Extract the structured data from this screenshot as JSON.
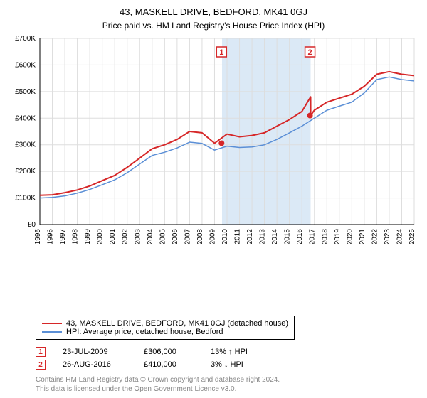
{
  "title": "43, MASKELL DRIVE, BEDFORD, MK41 0GJ",
  "subtitle": "Price paid vs. HM Land Registry's House Price Index (HPI)",
  "chart": {
    "type": "line",
    "x_years": [
      1995,
      1996,
      1997,
      1998,
      1999,
      2000,
      2001,
      2002,
      2003,
      2004,
      2005,
      2006,
      2007,
      2008,
      2009,
      2010,
      2011,
      2012,
      2013,
      2014,
      2015,
      2016,
      2017,
      2018,
      2019,
      2020,
      2021,
      2022,
      2023,
      2024,
      2025
    ],
    "ylim": [
      0,
      700000
    ],
    "ytick_step": 100000,
    "ytick_labels": [
      "£0",
      "£100K",
      "£200K",
      "£300K",
      "£400K",
      "£500K",
      "£600K",
      "£700K"
    ],
    "xlabel_fontsize": 10,
    "ylabel_fontsize": 10,
    "grid_color": "#dddddd",
    "background_color": "#ffffff",
    "highlight_band_color": "#dbe9f6",
    "highlight_band": [
      2009.6,
      2016.7
    ],
    "series": [
      {
        "name": "43, MASKELL DRIVE, BEDFORD, MK41 0GJ (detached house)",
        "color": "#d62728",
        "line_width": 2,
        "values_by_year": {
          "1995": 110,
          "1996": 112,
          "1997": 120,
          "1998": 130,
          "1999": 145,
          "2000": 165,
          "2001": 185,
          "2002": 215,
          "2003": 250,
          "2004": 285,
          "2005": 300,
          "2006": 320,
          "2007": 350,
          "2008": 345,
          "2009": 306,
          "2010": 340,
          "2011": 330,
          "2012": 335,
          "2013": 345,
          "2014": 370,
          "2015": 395,
          "2016": 425,
          "2016.7": 480,
          "2016.71": 410,
          "2017": 430,
          "2018": 460,
          "2019": 475,
          "2020": 490,
          "2021": 520,
          "2022": 565,
          "2023": 575,
          "2024": 565,
          "2025": 560
        }
      },
      {
        "name": "HPI: Average price, detached house, Bedford",
        "color": "#5b8fd6",
        "line_width": 1.5,
        "values_by_year": {
          "1995": 100,
          "1996": 102,
          "1997": 108,
          "1998": 118,
          "1999": 132,
          "2000": 150,
          "2001": 168,
          "2002": 195,
          "2003": 228,
          "2004": 260,
          "2005": 272,
          "2006": 288,
          "2007": 310,
          "2008": 305,
          "2009": 280,
          "2010": 295,
          "2011": 290,
          "2012": 292,
          "2013": 300,
          "2014": 320,
          "2015": 345,
          "2016": 370,
          "2017": 400,
          "2018": 430,
          "2019": 445,
          "2020": 460,
          "2021": 495,
          "2022": 545,
          "2023": 555,
          "2024": 545,
          "2025": 540
        }
      }
    ],
    "transaction_points": [
      {
        "label": "1",
        "year": 2009.56,
        "value": 306
      },
      {
        "label": "2",
        "year": 2016.65,
        "value": 410
      }
    ],
    "transaction_label_fontsize": 11,
    "point_color": "#d62728",
    "point_radius": 4
  },
  "legend": {
    "items": [
      {
        "label": "43, MASKELL DRIVE, BEDFORD, MK41 0GJ (detached house)",
        "color": "#d62728",
        "width": 2
      },
      {
        "label": "HPI: Average price, detached house, Bedford",
        "color": "#5b8fd6",
        "width": 1.5
      }
    ]
  },
  "transactions": [
    {
      "marker": "1",
      "date": "23-JUL-2009",
      "price": "£306,000",
      "delta": "13% ↑ HPI"
    },
    {
      "marker": "2",
      "date": "26-AUG-2016",
      "price": "£410,000",
      "delta": "3% ↓ HPI"
    }
  ],
  "footer_line1": "Contains HM Land Registry data © Crown copyright and database right 2024.",
  "footer_line2": "This data is licensed under the Open Government Licence v3.0."
}
